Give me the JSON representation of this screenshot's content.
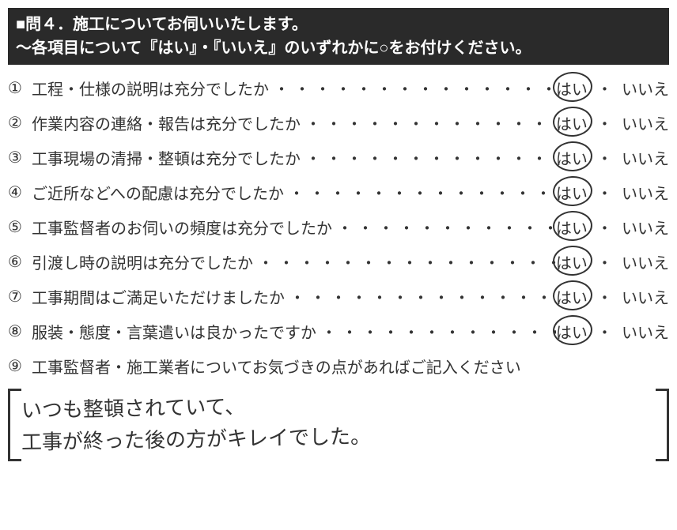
{
  "header": {
    "line1": "■問４．施工についてお伺いいたします。",
    "line2": "～各項目について『はい』・『いいえ』のいずれかに○をお付けください。"
  },
  "numbers": [
    "①",
    "②",
    "③",
    "④",
    "⑤",
    "⑥",
    "⑦",
    "⑧",
    "⑨"
  ],
  "questions": [
    {
      "text": "工程・仕様の説明は充分でしたか",
      "yes": "はい",
      "no": "いいえ",
      "circled": "yes"
    },
    {
      "text": "作業内容の連絡・報告は充分でしたか",
      "yes": "はい",
      "no": "いいえ",
      "circled": "yes"
    },
    {
      "text": "工事現場の清掃・整頓は充分でしたか",
      "yes": "はい",
      "no": "いいえ",
      "circled": "yes"
    },
    {
      "text": "ご近所などへの配慮は充分でしたか",
      "yes": "はい",
      "no": "いいえ",
      "circled": "yes"
    },
    {
      "text": "工事監督者のお伺いの頻度は充分でしたか",
      "yes": "はい",
      "no": "いいえ",
      "circled": "yes"
    },
    {
      "text": "引渡し時の説明は充分でしたか",
      "yes": "はい",
      "no": "いいえ",
      "circled": "yes"
    },
    {
      "text": "工事期間はご満足いただけましたか",
      "yes": "はい",
      "no": "いいえ",
      "circled": "yes"
    },
    {
      "text": "服装・態度・言葉遣いは良かったですか",
      "yes": "はい",
      "no": "いいえ",
      "circled": "yes"
    }
  ],
  "q9": {
    "text": "工事監督者・施工業者についてお気づきの点があればご記入ください"
  },
  "handwriting": {
    "line1": "いつも整頓されていて、",
    "line2": "工事が終った後の方がキレイでした。"
  },
  "dots_char": "・",
  "separator": "・"
}
